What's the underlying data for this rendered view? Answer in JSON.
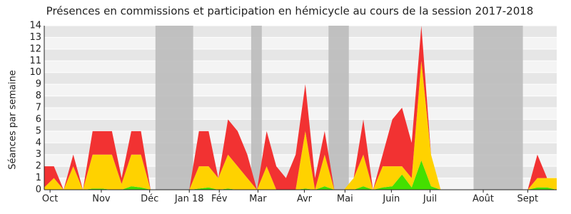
{
  "chart_data": {
    "type": "stacked-area",
    "title": "Présences en commissions et participation en hémicycle au cours de la session 2017-2018",
    "y_label": "Séances par semaine",
    "x": [
      0,
      1,
      2,
      3,
      4,
      5,
      6,
      7,
      8,
      9,
      10,
      11,
      12,
      13,
      14,
      15,
      16,
      17,
      18,
      19,
      20,
      21,
      22,
      23,
      24,
      25,
      26,
      27,
      28,
      29,
      30,
      31,
      32,
      33,
      34,
      35,
      36,
      37,
      38,
      39,
      40,
      41,
      42,
      43,
      44,
      45,
      46,
      47,
      48,
      49,
      50,
      51,
      52,
      53
    ],
    "xlim": [
      0,
      53
    ],
    "xticks": [
      {
        "value": 0.6,
        "label": "Oct"
      },
      {
        "value": 5.9,
        "label": "Nov"
      },
      {
        "value": 10.9,
        "label": "Déc"
      },
      {
        "value": 15,
        "label": "Jan 18"
      },
      {
        "value": 18.1,
        "label": "Fév"
      },
      {
        "value": 22.1,
        "label": "Mar"
      },
      {
        "value": 26.9,
        "label": "Avr"
      },
      {
        "value": 31.1,
        "label": "Mai"
      },
      {
        "value": 35.9,
        "label": "Juin"
      },
      {
        "value": 39.9,
        "label": "Juil"
      },
      {
        "value": 45.4,
        "label": "Août"
      },
      {
        "value": 50,
        "label": "Sept"
      }
    ],
    "ylim": [
      0,
      14
    ],
    "yticks": [
      0,
      1,
      2,
      3,
      4,
      5,
      6,
      7,
      8,
      9,
      10,
      11,
      12,
      13,
      14
    ],
    "shaded_periods": [
      [
        11.5,
        15.4
      ],
      [
        21.4,
        22.5
      ],
      [
        29.4,
        31.5
      ],
      [
        44.4,
        49.5
      ]
    ],
    "shade_color": "#bbbbbb",
    "grid": true,
    "series": [
      {
        "color": "#44e000",
        "values": [
          0,
          0,
          0,
          0,
          0,
          0.1,
          0.1,
          0,
          0,
          0.3,
          0.2,
          0,
          0,
          0,
          0,
          0,
          0.1,
          0.2,
          0,
          0.1,
          0,
          0,
          0,
          0,
          0,
          0,
          0,
          0.1,
          0,
          0.3,
          0,
          0,
          0,
          0.3,
          0,
          0.2,
          0.3,
          1.3,
          0.2,
          2.5,
          0.3,
          0,
          0,
          0,
          0,
          0,
          0,
          0,
          0,
          0,
          0,
          0.2,
          0.2,
          0
        ]
      },
      {
        "color": "#ffd200",
        "values": [
          0.2,
          1,
          0,
          2,
          0,
          2.9,
          2.9,
          3,
          0.5,
          2.7,
          2.8,
          0,
          0,
          0,
          0,
          0,
          1.9,
          1.8,
          1,
          2.9,
          2,
          1,
          0,
          2,
          0,
          0,
          0,
          4.9,
          0,
          2.7,
          0,
          0,
          1,
          2.7,
          0,
          1.8,
          1.7,
          0.7,
          0.8,
          8.5,
          2.7,
          0,
          0,
          0,
          0,
          0,
          0,
          0,
          0,
          0,
          0,
          0.8,
          0.8,
          1
        ]
      },
      {
        "color": "#f23232",
        "values": [
          1.8,
          1,
          0,
          1,
          0,
          2,
          2,
          2,
          0.5,
          2,
          2,
          0,
          0,
          0,
          0,
          0,
          3,
          3,
          0,
          3,
          3,
          2,
          0,
          3,
          2,
          1,
          3,
          4,
          1,
          2,
          0,
          0,
          0,
          3,
          0,
          1,
          4,
          5,
          3,
          3,
          0,
          0,
          0,
          0,
          0,
          0,
          0,
          0,
          0,
          0,
          0,
          2,
          0,
          0
        ]
      }
    ]
  }
}
